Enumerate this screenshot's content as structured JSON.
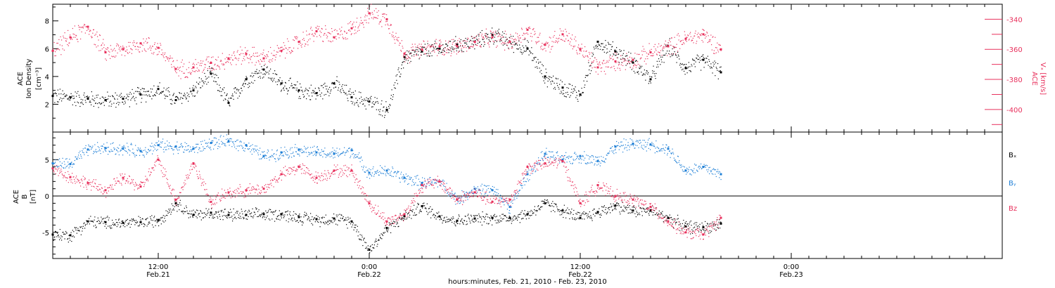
{
  "figure": {
    "xlabel": "hours:minutes, Feb. 21, 2010 - Feb. 23, 2010",
    "time_range_hours": [
      0,
      54
    ],
    "data_end_hours": 38,
    "x_ticks": [
      {
        "hours": 6,
        "time": "12:00",
        "date": "Feb.21"
      },
      {
        "hours": 18,
        "time": "0:00",
        "date": "Feb.22"
      },
      {
        "hours": 30,
        "time": "12:00",
        "date": "Feb.22"
      },
      {
        "hours": 42,
        "time": "0:00",
        "date": "Feb.23"
      }
    ],
    "x_minor_step_hours": 1,
    "colors": {
      "black": "#000000",
      "pink": "#e8305c",
      "blue": "#1e7fd6"
    }
  },
  "chart_data": [
    {
      "type": "scatter",
      "panel": "top",
      "ylabel_lines": [
        "ACE",
        "Ion Density"
      ],
      "ylabel_unit": "[cm⁻³]",
      "ylim": [
        0,
        9.2
      ],
      "yticks": [
        2,
        4,
        6,
        8
      ],
      "ylabel_right_lines": [
        "ACE",
        "Vₓ [km/s]"
      ],
      "ylim_right": [
        -415,
        -330
      ],
      "yticks_right": [
        -340,
        -360,
        -380,
        -400
      ],
      "series": [
        {
          "axis": "left",
          "color": "#000000",
          "x": [
            0,
            1,
            2,
            3,
            4,
            5,
            6,
            7,
            8,
            9,
            10,
            11,
            12,
            13,
            14,
            15,
            16,
            17,
            18,
            19,
            20,
            21,
            22,
            23,
            24,
            25,
            26,
            27,
            28,
            29,
            30,
            31,
            32,
            33,
            34,
            35,
            36,
            37,
            38
          ],
          "values": [
            2.6,
            2.5,
            2.4,
            2.3,
            2.4,
            2.7,
            3.1,
            2.3,
            3.0,
            4.2,
            2.1,
            3.8,
            4.5,
            3.5,
            3.0,
            2.8,
            3.5,
            2.5,
            2.2,
            1.6,
            5.4,
            5.8,
            6.0,
            6.3,
            6.5,
            7.0,
            6.5,
            6.0,
            4.0,
            3.2,
            2.7,
            6.5,
            5.8,
            5.0,
            3.8,
            6.2,
            4.6,
            5.2,
            4.3
          ]
        },
        {
          "axis": "right",
          "color": "#e8305c",
          "x": [
            0,
            1,
            2,
            3,
            4,
            5,
            6,
            7,
            8,
            9,
            10,
            11,
            12,
            13,
            14,
            15,
            16,
            17,
            18,
            19,
            20,
            21,
            22,
            23,
            24,
            25,
            26,
            27,
            28,
            29,
            30,
            31,
            32,
            33,
            34,
            35,
            36,
            37,
            38
          ],
          "values": [
            -361,
            -352,
            -345,
            -362,
            -360,
            -356,
            -359,
            -373,
            -372,
            -369,
            -366,
            -363,
            -366,
            -361,
            -355,
            -348,
            -352,
            -346,
            -336,
            -340,
            -363,
            -360,
            -358,
            -358,
            -355,
            -352,
            -355,
            -347,
            -357,
            -350,
            -360,
            -372,
            -368,
            -367,
            -362,
            -358,
            -353,
            -350,
            -360
          ]
        }
      ]
    },
    {
      "type": "scatter",
      "panel": "bottom",
      "ylabel_lines": [
        "ACE",
        "B",
        "[nT]"
      ],
      "ylim": [
        -8.6,
        8.8
      ],
      "yticks": [
        -5,
        0,
        5
      ],
      "zero_line": true,
      "legend": [
        "Bₓ",
        "Bᵧ",
        "Bz"
      ],
      "legend_position": "right",
      "series": [
        {
          "name": "Bₓ",
          "color": "#000000",
          "x": [
            0,
            1,
            2,
            3,
            4,
            5,
            6,
            7,
            8,
            9,
            10,
            11,
            12,
            13,
            14,
            15,
            16,
            17,
            18,
            19,
            20,
            21,
            22,
            23,
            24,
            25,
            26,
            27,
            28,
            29,
            30,
            31,
            32,
            33,
            34,
            35,
            36,
            37,
            38
          ],
          "values": [
            -5.3,
            -5.4,
            -3.5,
            -3.6,
            -3.7,
            -3.6,
            -3.3,
            -1.0,
            -2.6,
            -2.3,
            -2.6,
            -2.6,
            -2.5,
            -2.5,
            -2.9,
            -3.2,
            -3.1,
            -3.5,
            -7.4,
            -4.4,
            -2.8,
            -1.4,
            -2.8,
            -3.4,
            -3.1,
            -3.0,
            -3.0,
            -2.5,
            -1.0,
            -2.0,
            -3.0,
            -2.2,
            -1.3,
            -2.0,
            -2.0,
            -3.0,
            -4.2,
            -4.3,
            -3.8
          ]
        },
        {
          "name": "Bᵧ",
          "color": "#1e7fd6",
          "x": [
            0,
            1,
            2,
            3,
            4,
            5,
            6,
            7,
            8,
            9,
            10,
            11,
            12,
            13,
            14,
            15,
            16,
            17,
            18,
            19,
            20,
            21,
            22,
            23,
            24,
            25,
            26,
            27,
            28,
            29,
            30,
            31,
            32,
            33,
            34,
            35,
            36,
            37,
            38
          ],
          "values": [
            4.5,
            4.4,
            6.4,
            6.6,
            6.5,
            6.2,
            7.0,
            6.8,
            6.5,
            7.3,
            7.5,
            7.0,
            5.5,
            6.0,
            6.4,
            6.0,
            5.8,
            6.3,
            3.2,
            3.5,
            2.5,
            1.8,
            2.0,
            -0.5,
            1.0,
            0.8,
            -1.5,
            3.0,
            5.8,
            5.0,
            5.5,
            4.8,
            6.8,
            7.2,
            7.1,
            6.5,
            3.5,
            4.0,
            3.0
          ]
        },
        {
          "name": "Bz",
          "color": "#e8305c",
          "x": [
            0,
            1,
            2,
            3,
            4,
            5,
            6,
            7,
            8,
            9,
            10,
            11,
            12,
            13,
            14,
            15,
            16,
            17,
            18,
            19,
            20,
            21,
            22,
            23,
            24,
            25,
            26,
            27,
            28,
            29,
            30,
            31,
            32,
            33,
            34,
            35,
            36,
            37,
            38
          ],
          "values": [
            3.8,
            2.6,
            1.8,
            0.8,
            2.5,
            1.3,
            5.0,
            -0.5,
            4.5,
            -0.8,
            0.5,
            0.8,
            1.0,
            3.0,
            4.0,
            2.5,
            3.5,
            3.5,
            -1.0,
            -3.5,
            -2.5,
            1.5,
            2.0,
            -0.5,
            0.5,
            -0.8,
            -0.5,
            4.0,
            4.5,
            4.8,
            -1.0,
            1.5,
            0.0,
            -0.5,
            -1.5,
            -3.5,
            -5.0,
            -5.3,
            -3.0
          ]
        }
      ]
    }
  ]
}
